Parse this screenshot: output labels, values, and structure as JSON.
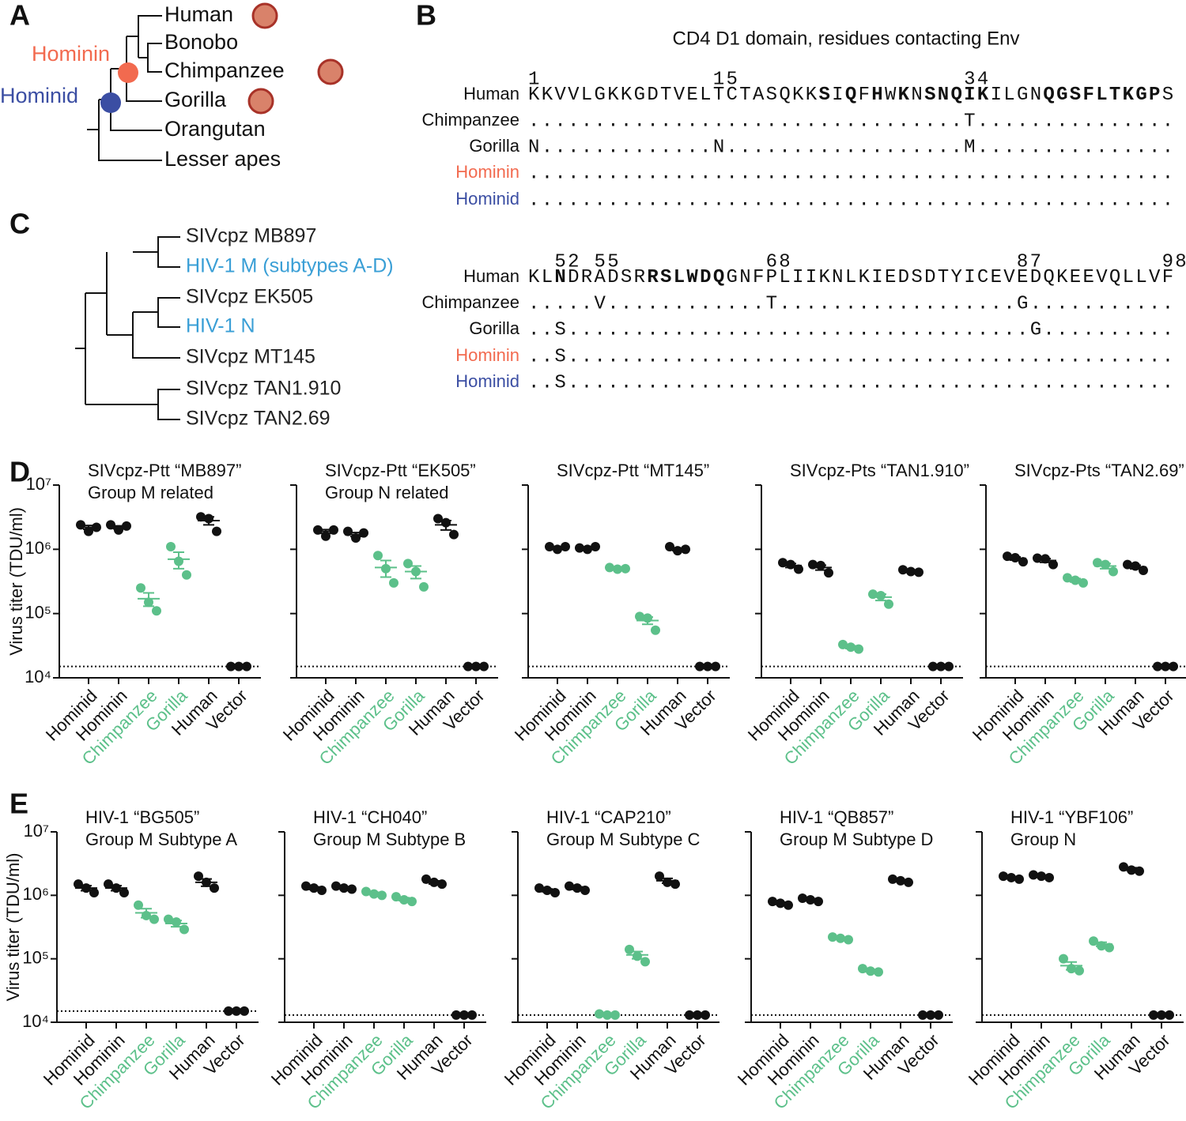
{
  "panel_labels": [
    "A",
    "B",
    "C",
    "D",
    "E"
  ],
  "tree_a": {
    "taxa": [
      "Human",
      "Bonobo",
      "Chimpanzee",
      "Gorilla",
      "Orangutan",
      "Lesser apes"
    ],
    "nodes": [
      {
        "label": "Hominin",
        "color": "#f26a4f"
      },
      {
        "label": "Hominid",
        "color": "#3b4ea3"
      }
    ]
  },
  "alignment": {
    "title": "CD4 D1 domain, residues contacting Env",
    "species": [
      {
        "name": "Human",
        "color": "#111111"
      },
      {
        "name": "Chimpanzee",
        "color": "#111111"
      },
      {
        "name": "Gorilla",
        "color": "#111111"
      },
      {
        "name": "Hominin",
        "color": "#f26a4f"
      },
      {
        "name": "Hominid",
        "color": "#3b4ea3"
      }
    ],
    "blocks": [
      {
        "numbers": [
          1,
          15,
          34
        ],
        "rows": [
          [
            {
              "text": "KKVVLGKKGDTVELTCTASQKK",
              "bold": false
            },
            {
              "text": "S",
              "bold": true
            },
            {
              "text": "I",
              "bold": false
            },
            {
              "text": "Q",
              "bold": true
            },
            {
              "text": "F",
              "bold": false
            },
            {
              "text": "H",
              "bold": true
            },
            {
              "text": "W",
              "bold": false
            },
            {
              "text": "K",
              "bold": true
            },
            {
              "text": "N",
              "bold": false
            },
            {
              "text": "SNQIK",
              "bold": true
            },
            {
              "text": "ILGN",
              "bold": false
            },
            {
              "text": "QGSFLTKGP",
              "bold": true
            },
            {
              "text": "S",
              "bold": false
            }
          ],
          ".................................T...............",
          "N.............N..................M...............",
          ".................................................",
          "................................................."
        ]
      },
      {
        "numbers": [
          52,
          55,
          68,
          87,
          98
        ],
        "rows": [
          [
            {
              "text": "KL",
              "bold": false
            },
            {
              "text": "N",
              "bold": true
            },
            {
              "text": "DRADSR",
              "bold": false
            },
            {
              "text": "RSLWDQ",
              "bold": true
            },
            {
              "text": "GNFPLIIKNLKIEDSDTYICEVEDQKEEVQLLVF",
              "bold": false
            }
          ],
          ".....V............T..................G...........",
          "..S...................................G..........",
          "..S..............................................",
          "..S.............................................."
        ]
      }
    ]
  },
  "tree_c": {
    "taxa": [
      {
        "label": "SIVcpz MB897",
        "color": "#222222"
      },
      {
        "label": "HIV-1 M (subtypes A-D)",
        "color": "#3a9fd6"
      },
      {
        "label": "SIVcpz EK505",
        "color": "#222222"
      },
      {
        "label": "HIV-1 N",
        "color": "#3a9fd6"
      },
      {
        "label": "SIVcpz MT145",
        "color": "#222222"
      },
      {
        "label": "SIVcpz TAN1.910",
        "color": "#222222"
      },
      {
        "label": "SIVcpz TAN2.69",
        "color": "#222222"
      }
    ]
  },
  "chart_data": [
    {
      "type": "dot",
      "title": "SIVcpz-Ptt “MB897”",
      "subtitle": "Group M related",
      "ylabel": "Virus titer (TDU/ml)",
      "categories": [
        "Hominid",
        "Hominin",
        "Chimpanzee",
        "Gorilla",
        "Human",
        "Vector"
      ],
      "colors": [
        "#111111",
        "#111111",
        "#5cc08a",
        "#5cc08a",
        "#111111",
        "#111111"
      ],
      "values": [
        [
          2400000,
          1900000,
          2200000
        ],
        [
          2400000,
          2000000,
          2300000
        ],
        [
          250000,
          150000,
          110000
        ],
        [
          1100000,
          650000,
          400000
        ],
        [
          3200000,
          3000000,
          1900000
        ],
        [
          15000,
          15000,
          15000
        ]
      ],
      "means": [
        2200000,
        2200000,
        170000,
        700000,
        2800000,
        15000
      ],
      "errors": [
        150000,
        120000,
        40000,
        200000,
        400000,
        0
      ],
      "log_scale": true,
      "ylim": [
        10000,
        10000000
      ],
      "yticks": [
        {
          "value": 10000,
          "label": "10⁴"
        },
        {
          "value": 100000,
          "label": "10⁵"
        },
        {
          "value": 1000000,
          "label": "10⁶"
        },
        {
          "value": 10000000,
          "label": "10⁷"
        }
      ],
      "limit_of_detection": 15000
    },
    {
      "type": "dot",
      "title": "SIVcpz-Ptt “EK505”",
      "subtitle": "Group N related",
      "categories": [
        "Hominid",
        "Hominin",
        "Chimpanzee",
        "Gorilla",
        "Human",
        "Vector"
      ],
      "colors": [
        "#111111",
        "#111111",
        "#5cc08a",
        "#5cc08a",
        "#111111",
        "#111111"
      ],
      "values": [
        [
          2000000,
          1600000,
          2000000
        ],
        [
          1900000,
          1500000,
          1800000
        ],
        [
          800000,
          500000,
          300000
        ],
        [
          600000,
          450000,
          260000
        ],
        [
          3000000,
          2600000,
          1700000
        ],
        [
          15000,
          15000,
          15000
        ]
      ],
      "means": [
        1900000,
        1700000,
        520000,
        450000,
        2400000,
        15000
      ],
      "errors": [
        130000,
        120000,
        150000,
        100000,
        400000,
        0
      ],
      "log_scale": true,
      "ylim": [
        10000,
        10000000
      ],
      "yticks": [
        {
          "value": 10000,
          "label": null
        },
        {
          "value": 100000,
          "label": null
        },
        {
          "value": 1000000,
          "label": null
        },
        {
          "value": 10000000,
          "label": null
        }
      ],
      "limit_of_detection": 15000
    },
    {
      "type": "dot",
      "title": "SIVcpz-Ptt “MT145”",
      "categories": [
        "Hominid",
        "Hominin",
        "Chimpanzee",
        "Gorilla",
        "Human",
        "Vector"
      ],
      "colors": [
        "#111111",
        "#111111",
        "#5cc08a",
        "#5cc08a",
        "#111111",
        "#111111"
      ],
      "values": [
        [
          1100000,
          1000000,
          1100000
        ],
        [
          1050000,
          1000000,
          1100000
        ],
        [
          520000,
          490000,
          500000
        ],
        [
          90000,
          85000,
          55000
        ],
        [
          1100000,
          950000,
          1000000
        ],
        [
          15000,
          15000,
          15000
        ]
      ],
      "means": [
        1050000,
        1050000,
        500000,
        78000,
        1000000,
        15000
      ],
      "errors": [
        30000,
        30000,
        10000,
        10000,
        45000,
        0
      ],
      "log_scale": true,
      "ylim": [
        10000,
        10000000
      ],
      "yticks": [
        {
          "value": 10000,
          "label": null
        },
        {
          "value": 100000,
          "label": null
        },
        {
          "value": 1000000,
          "label": null
        },
        {
          "value": 10000000,
          "label": null
        }
      ],
      "limit_of_detection": 15000
    },
    {
      "type": "dot",
      "title": "SIVcpz-Pts “TAN1.910”",
      "categories": [
        "Hominid",
        "Hominin",
        "Chimpanzee",
        "Gorilla",
        "Human",
        "Vector"
      ],
      "colors": [
        "#111111",
        "#111111",
        "#5cc08a",
        "#5cc08a",
        "#111111",
        "#111111"
      ],
      "values": [
        [
          620000,
          580000,
          490000
        ],
        [
          580000,
          560000,
          430000
        ],
        [
          33000,
          30000,
          28000
        ],
        [
          200000,
          190000,
          140000
        ],
        [
          480000,
          450000,
          440000
        ],
        [
          15000,
          15000,
          15000
        ]
      ],
      "means": [
        560000,
        520000,
        30000,
        180000,
        460000,
        15000
      ],
      "errors": [
        40000,
        45000,
        1500,
        20000,
        12000,
        0
      ],
      "log_scale": true,
      "ylim": [
        10000,
        10000000
      ],
      "yticks": [
        {
          "value": 10000,
          "label": null
        },
        {
          "value": 100000,
          "label": null
        },
        {
          "value": 1000000,
          "label": null
        },
        {
          "value": 10000000,
          "label": null
        }
      ],
      "limit_of_detection": 15000
    },
    {
      "type": "dot",
      "title": "SIVcpz-Pts “TAN2.69”",
      "categories": [
        "Hominid",
        "Hominin",
        "Chimpanzee",
        "Gorilla",
        "Human",
        "Vector"
      ],
      "colors": [
        "#111111",
        "#111111",
        "#5cc08a",
        "#5cc08a",
        "#111111",
        "#111111"
      ],
      "values": [
        [
          780000,
          740000,
          640000
        ],
        [
          730000,
          710000,
          580000
        ],
        [
          360000,
          330000,
          300000
        ],
        [
          620000,
          580000,
          450000
        ],
        [
          580000,
          550000,
          470000
        ],
        [
          15000,
          15000,
          15000
        ]
      ],
      "means": [
        720000,
        670000,
        330000,
        550000,
        530000,
        15000
      ],
      "errors": [
        40000,
        45000,
        20000,
        50000,
        35000,
        0
      ],
      "log_scale": true,
      "ylim": [
        10000,
        10000000
      ],
      "yticks": [
        {
          "value": 10000,
          "label": null
        },
        {
          "value": 100000,
          "label": null
        },
        {
          "value": 1000000,
          "label": null
        },
        {
          "value": 10000000,
          "label": null
        }
      ],
      "limit_of_detection": 15000
    },
    {
      "type": "dot",
      "title": "HIV-1 “BG505”",
      "subtitle": "Group M Subtype A",
      "ylabel": "Virus titer (TDU/ml)",
      "categories": [
        "Hominid",
        "Hominin",
        "Chimpanzee",
        "Gorilla",
        "Human",
        "Vector"
      ],
      "colors": [
        "#111111",
        "#111111",
        "#5cc08a",
        "#5cc08a",
        "#111111",
        "#111111"
      ],
      "values": [
        [
          1500000,
          1300000,
          1100000
        ],
        [
          1500000,
          1300000,
          1100000
        ],
        [
          700000,
          480000,
          420000
        ],
        [
          420000,
          380000,
          290000
        ],
        [
          2000000,
          1600000,
          1300000
        ],
        [
          15000,
          15000,
          15000
        ]
      ],
      "means": [
        1300000,
        1300000,
        530000,
        360000,
        1600000,
        15000
      ],
      "errors": [
        120000,
        120000,
        85000,
        40000,
        210000,
        0
      ],
      "log_scale": true,
      "ylim": [
        10000,
        10000000
      ],
      "yticks": [
        {
          "value": 10000,
          "label": "10⁴"
        },
        {
          "value": 100000,
          "label": "10⁵"
        },
        {
          "value": 1000000,
          "label": "10⁶"
        },
        {
          "value": 10000000,
          "label": "10⁷"
        }
      ],
      "limit_of_detection": 15000
    },
    {
      "type": "dot",
      "title": "HIV-1 “CH040”",
      "subtitle": "Group M Subtype B",
      "categories": [
        "Hominid",
        "Hominin",
        "Chimpanzee",
        "Gorilla",
        "Human",
        "Vector"
      ],
      "colors": [
        "#111111",
        "#111111",
        "#5cc08a",
        "#5cc08a",
        "#111111",
        "#111111"
      ],
      "values": [
        [
          1400000,
          1300000,
          1200000
        ],
        [
          1400000,
          1300000,
          1250000
        ],
        [
          1150000,
          1050000,
          1000000
        ],
        [
          950000,
          850000,
          800000
        ],
        [
          1800000,
          1600000,
          1500000
        ],
        [
          13000,
          13000,
          13000
        ]
      ],
      "means": [
        1300000,
        1300000,
        1070000,
        870000,
        1600000,
        13000
      ],
      "errors": [
        60000,
        45000,
        45000,
        45000,
        90000,
        0
      ],
      "log_scale": true,
      "ylim": [
        10000,
        10000000
      ],
      "yticks": [
        {
          "value": 10000,
          "label": null
        },
        {
          "value": 100000,
          "label": null
        },
        {
          "value": 1000000,
          "label": null
        },
        {
          "value": 10000000,
          "label": null
        }
      ],
      "limit_of_detection": 13000
    },
    {
      "type": "dot",
      "title": "HIV-1 “CAP210”",
      "subtitle": "Group M Subtype C",
      "categories": [
        "Hominid",
        "Hominin",
        "Chimpanzee",
        "Gorilla",
        "Human",
        "Vector"
      ],
      "colors": [
        "#111111",
        "#111111",
        "#5cc08a",
        "#5cc08a",
        "#111111",
        "#111111"
      ],
      "values": [
        [
          1300000,
          1200000,
          1100000
        ],
        [
          1400000,
          1300000,
          1200000
        ],
        [
          13500,
          13000,
          13000
        ],
        [
          140000,
          110000,
          90000
        ],
        [
          2000000,
          1600000,
          1500000
        ],
        [
          13000,
          13000,
          13000
        ]
      ],
      "means": [
        1200000,
        1300000,
        13200,
        115000,
        1700000,
        13000
      ],
      "errors": [
        60000,
        60000,
        170,
        15000,
        150000,
        0
      ],
      "log_scale": true,
      "ylim": [
        10000,
        10000000
      ],
      "yticks": [
        {
          "value": 10000,
          "label": null
        },
        {
          "value": 100000,
          "label": null
        },
        {
          "value": 1000000,
          "label": null
        },
        {
          "value": 10000000,
          "label": null
        }
      ],
      "limit_of_detection": 13000
    },
    {
      "type": "dot",
      "title": "HIV-1 “QB857”",
      "subtitle": "Group M Subtype D",
      "categories": [
        "Hominid",
        "Hominin",
        "Chimpanzee",
        "Gorilla",
        "Human",
        "Vector"
      ],
      "colors": [
        "#111111",
        "#111111",
        "#5cc08a",
        "#5cc08a",
        "#111111",
        "#111111"
      ],
      "values": [
        [
          800000,
          750000,
          700000
        ],
        [
          900000,
          850000,
          800000
        ],
        [
          220000,
          210000,
          200000
        ],
        [
          70000,
          64000,
          62000
        ],
        [
          1800000,
          1700000,
          1600000
        ],
        [
          13000,
          13000,
          13000
        ]
      ],
      "means": [
        750000,
        850000,
        210000,
        65000,
        1700000,
        13000
      ],
      "errors": [
        30000,
        30000,
        6000,
        2600,
        60000,
        0
      ],
      "log_scale": true,
      "ylim": [
        10000,
        10000000
      ],
      "yticks": [
        {
          "value": 10000,
          "label": null
        },
        {
          "value": 100000,
          "label": null
        },
        {
          "value": 1000000,
          "label": null
        },
        {
          "value": 10000000,
          "label": null
        }
      ],
      "limit_of_detection": 13000
    },
    {
      "type": "dot",
      "title": "HIV-1 “YBF106”",
      "subtitle": "Group N",
      "categories": [
        "Hominid",
        "Hominin",
        "Chimpanzee",
        "Gorilla",
        "Human",
        "Vector"
      ],
      "colors": [
        "#111111",
        "#111111",
        "#5cc08a",
        "#5cc08a",
        "#111111",
        "#111111"
      ],
      "values": [
        [
          2000000,
          1900000,
          1800000
        ],
        [
          2100000,
          2000000,
          1900000
        ],
        [
          100000,
          70000,
          65000
        ],
        [
          190000,
          160000,
          150000
        ],
        [
          2800000,
          2500000,
          2400000
        ],
        [
          13000,
          13000,
          13000
        ]
      ],
      "means": [
        1900000,
        2000000,
        78000,
        170000,
        2600000,
        13000
      ],
      "errors": [
        60000,
        60000,
        11000,
        12000,
        120000,
        0
      ],
      "log_scale": true,
      "ylim": [
        10000,
        10000000
      ],
      "yticks": [
        {
          "value": 10000,
          "label": null
        },
        {
          "value": 100000,
          "label": null
        },
        {
          "value": 1000000,
          "label": null
        },
        {
          "value": 10000000,
          "label": null
        }
      ],
      "limit_of_detection": 13000
    }
  ]
}
